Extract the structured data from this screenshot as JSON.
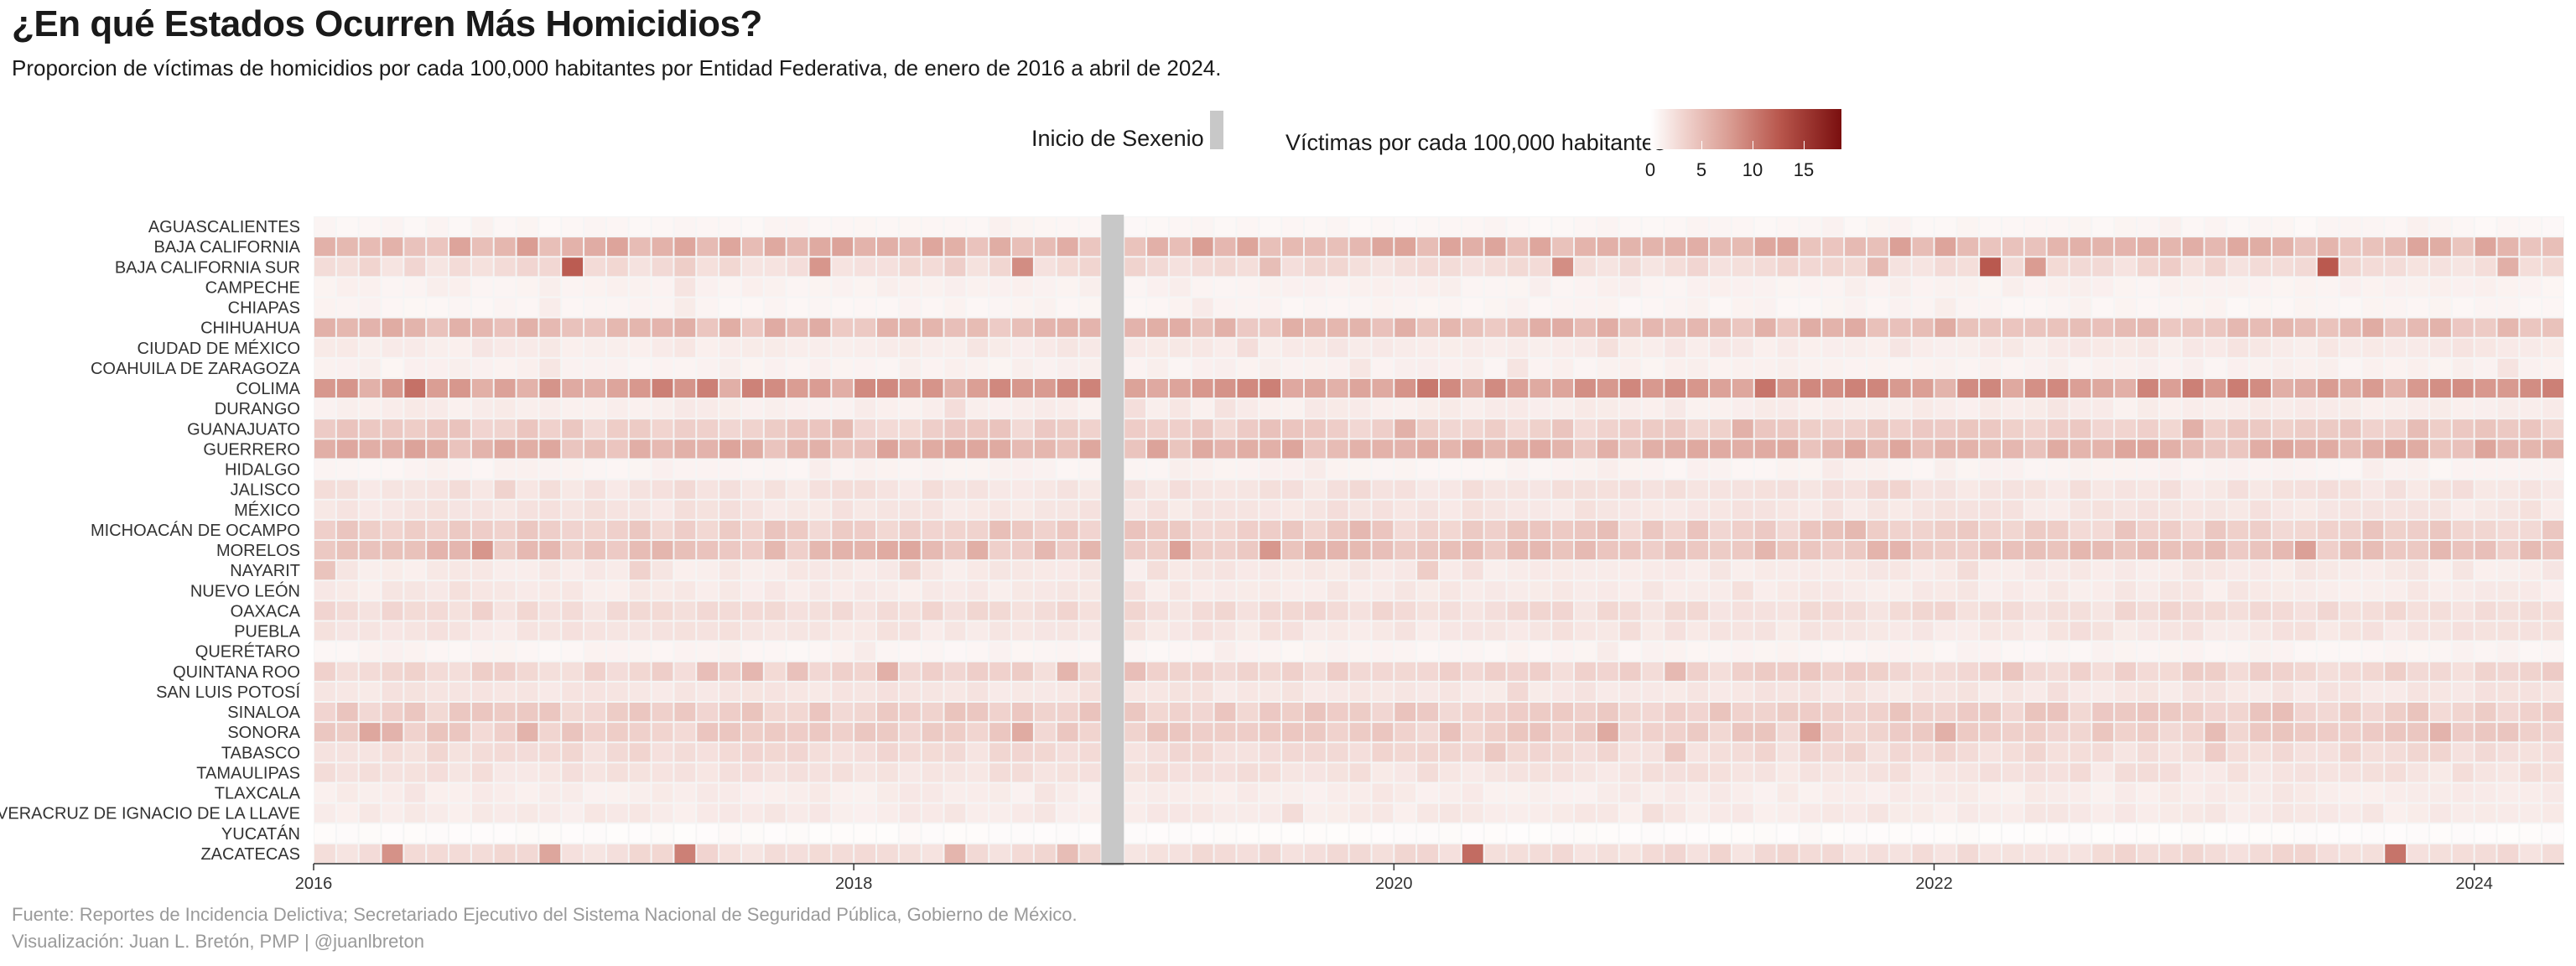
{
  "header": {
    "title": "¿En qué Estados Ocurren Más Homicidios?",
    "subtitle": "Proporcion de víctimas de homicidios por cada 100,000 habitantes por Entidad Federativa, de enero de 2016 a abril de 2024."
  },
  "legend": {
    "sexenio_label": "Inicio de Sexenio",
    "color_label": "Víctimas por cada 100,000 habitantes",
    "ticks": [
      "0",
      "5",
      "10",
      "15"
    ]
  },
  "footer": {
    "source": "Fuente: Reportes de Incidencia Delictiva; Secretariado Ejecutivo del Sistema Nacional de Seguridad Pública, Gobierno de México.",
    "credit": "Visualización: Juan L. Bretón, PMP | @juanlbreton"
  },
  "chart_data": {
    "type": "heatmap",
    "x_start": "2016-01",
    "x_end": "2024-04",
    "x_ticks": [
      "2016",
      "2018",
      "2020",
      "2022",
      "2024"
    ],
    "color_scale": {
      "min": 0,
      "max": 18,
      "low": "#ffffff",
      "high": "#7a0f0f"
    },
    "sexenio_start": "2018-12",
    "states": [
      {
        "name": "AGUASCALIENTES",
        "base": 0.7,
        "peak": 1.2
      },
      {
        "name": "BAJA CALIFORNIA",
        "base": 5.5,
        "peak": 7.5
      },
      {
        "name": "BAJA CALIFORNIA SUR",
        "base": 2.5,
        "peak": 13.0
      },
      {
        "name": "CAMPECHE",
        "base": 1.0,
        "peak": 2.0
      },
      {
        "name": "CHIAPAS",
        "base": 0.8,
        "peak": 1.5
      },
      {
        "name": "CHIHUAHUA",
        "base": 5.0,
        "peak": 7.0
      },
      {
        "name": "CIUDAD DE MÉXICO",
        "base": 1.5,
        "peak": 2.5
      },
      {
        "name": "COAHUILA DE ZARAGOZA",
        "base": 1.0,
        "peak": 2.0
      },
      {
        "name": "COLIMA",
        "base": 7.5,
        "peak": 12.0
      },
      {
        "name": "DURANGO",
        "base": 1.3,
        "peak": 2.5
      },
      {
        "name": "GUANAJUATO",
        "base": 3.5,
        "peak": 6.0
      },
      {
        "name": "GUERRERO",
        "base": 5.5,
        "peak": 7.0
      },
      {
        "name": "HIDALGO",
        "base": 0.9,
        "peak": 1.5
      },
      {
        "name": "JALISCO",
        "base": 2.0,
        "peak": 3.5
      },
      {
        "name": "MÉXICO",
        "base": 1.8,
        "peak": 2.5
      },
      {
        "name": "MICHOACÁN DE OCAMPO",
        "base": 3.5,
        "peak": 5.5
      },
      {
        "name": "MORELOS",
        "base": 4.5,
        "peak": 8.0
      },
      {
        "name": "NAYARIT",
        "base": 1.5,
        "peak": 5.0
      },
      {
        "name": "NUEVO LEÓN",
        "base": 1.5,
        "peak": 2.5
      },
      {
        "name": "OAXACA",
        "base": 2.5,
        "peak": 3.5
      },
      {
        "name": "PUEBLA",
        "base": 1.8,
        "peak": 2.5
      },
      {
        "name": "QUERÉTARO",
        "base": 0.8,
        "peak": 1.5
      },
      {
        "name": "QUINTANA ROO",
        "base": 3.0,
        "peak": 6.0
      },
      {
        "name": "SAN LUIS POTOSÍ",
        "base": 1.8,
        "peak": 3.0
      },
      {
        "name": "SINALOA",
        "base": 3.5,
        "peak": 5.0
      },
      {
        "name": "SONORA",
        "base": 3.5,
        "peak": 7.0
      },
      {
        "name": "TABASCO",
        "base": 2.5,
        "peak": 5.0
      },
      {
        "name": "TAMAULIPAS",
        "base": 2.0,
        "peak": 3.0
      },
      {
        "name": "TLAXCALA",
        "base": 1.3,
        "peak": 2.0
      },
      {
        "name": "VERACRUZ DE IGNACIO DE LA LLAVE",
        "base": 1.5,
        "peak": 2.5
      },
      {
        "name": "YUCATÁN",
        "base": 0.3,
        "peak": 0.6
      },
      {
        "name": "ZACATECAS",
        "base": 2.5,
        "peak": 11.0
      }
    ]
  }
}
